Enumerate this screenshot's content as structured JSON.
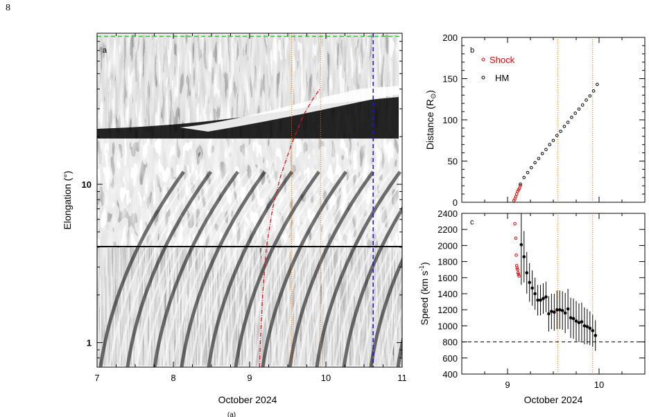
{
  "page": {
    "number": "8",
    "caption_stub": "(a)"
  },
  "colors": {
    "shock": "#e00000",
    "hm": "#000000",
    "reference_line": "#000000",
    "green_dash": "#22cc22",
    "blue_dash": "#1a1acc",
    "orange_dot": "#e07a2e",
    "red_fit": "#e01010"
  },
  "chart_data": [
    {
      "id": "a",
      "type": "heatmap",
      "panel_label": "a",
      "xlabel": "October 2024",
      "ylabel": "Elongation (°)",
      "x_ticks": [
        "7",
        "8",
        "9",
        "10",
        "11"
      ],
      "y_ticks": [
        "1",
        "10"
      ],
      "xlim": [
        7,
        11
      ],
      "y_scale": "log",
      "ylim": [
        0.7,
        90
      ],
      "vertical_dotted_lines_x": [
        9.55,
        9.93
      ],
      "vertical_dashed_line_x": 10.62,
      "horizontal_dashed_line_y": 86,
      "track_fit": [
        [
          9.13,
          0.7
        ],
        [
          9.14,
          1.0
        ],
        [
          9.17,
          2.0
        ],
        [
          9.22,
          4.0
        ],
        [
          9.3,
          7.0
        ],
        [
          9.4,
          11.0
        ],
        [
          9.55,
          18.0
        ],
        [
          9.7,
          27.0
        ],
        [
          9.82,
          34.0
        ],
        [
          9.92,
          40.0
        ]
      ]
    },
    {
      "id": "b",
      "type": "scatter",
      "panel_label": "b",
      "ylabel_text": "Distance (R",
      "ylabel_sub": "⊙",
      "ylabel_close": ")",
      "ylim": [
        0,
        200
      ],
      "xlim": [
        8.5,
        10.5
      ],
      "y_ticks": [
        "0",
        "50",
        "100",
        "150",
        "200"
      ],
      "vertical_dotted_lines_x": [
        9.55,
        9.93
      ],
      "legend": [
        {
          "name": "Shock",
          "color": "#e00000"
        },
        {
          "name": "HM",
          "color": "#000000"
        }
      ],
      "legend_position": "top-left",
      "series": [
        {
          "name": "Shock",
          "x": [
            9.07,
            9.08,
            9.09,
            9.1,
            9.11,
            9.12,
            9.13,
            9.14
          ],
          "y": [
            2,
            4,
            7,
            10,
            13,
            15,
            17,
            20
          ]
        },
        {
          "name": "HM",
          "x": [
            9.14,
            9.18,
            9.22,
            9.26,
            9.3,
            9.34,
            9.38,
            9.42,
            9.46,
            9.5,
            9.54,
            9.58,
            9.62,
            9.66,
            9.7,
            9.74,
            9.78,
            9.82,
            9.86,
            9.9,
            9.94,
            9.98
          ],
          "y": [
            22,
            30,
            36,
            42,
            48,
            53,
            59,
            64,
            70,
            75,
            81,
            86,
            92,
            97,
            103,
            108,
            113,
            118,
            124,
            129,
            135,
            143
          ]
        }
      ]
    },
    {
      "id": "c",
      "type": "scatter",
      "panel_label": "c",
      "xlabel": "October 2024",
      "ylabel_text": "Speed (km s",
      "ylabel_sup": "-1",
      "ylabel_close": ")",
      "x_ticks": [
        "9",
        "10"
      ],
      "y_ticks": [
        "400",
        "600",
        "800",
        "1000",
        "1200",
        "1400",
        "1600",
        "1800",
        "2000",
        "2200",
        "2400"
      ],
      "xlim": [
        8.5,
        10.5
      ],
      "ylim": [
        400,
        2400
      ],
      "reference_line_y": 800,
      "vertical_dotted_lines_x": [
        9.55,
        9.93
      ],
      "series": [
        {
          "name": "Shock",
          "x": [
            9.08,
            9.09,
            9.095,
            9.1,
            9.105,
            9.11,
            9.115,
            9.12,
            9.125
          ],
          "y": [
            2270,
            2090,
            1880,
            1750,
            1720,
            1700,
            1660,
            1640,
            1620
          ]
        },
        {
          "name": "HM",
          "x": [
            9.15,
            9.18,
            9.21,
            9.24,
            9.27,
            9.3,
            9.33,
            9.36,
            9.39,
            9.42,
            9.45,
            9.48,
            9.51,
            9.54,
            9.57,
            9.6,
            9.63,
            9.66,
            9.69,
            9.72,
            9.75,
            9.78,
            9.81,
            9.84,
            9.87,
            9.9,
            9.93,
            9.96
          ],
          "y": [
            2010,
            1860,
            1660,
            1540,
            1470,
            1400,
            1320,
            1320,
            1340,
            1360,
            1150,
            1180,
            1170,
            1200,
            1200,
            1190,
            1160,
            1210,
            1100,
            1090,
            1060,
            1040,
            1050,
            1000,
            990,
            970,
            940,
            880
          ],
          "err": [
            500,
            320,
            260,
            240,
            220,
            200,
            190,
            190,
            190,
            190,
            220,
            220,
            230,
            240,
            240,
            240,
            250,
            250,
            250,
            250,
            250,
            240,
            240,
            230,
            220,
            210,
            200,
            190
          ]
        }
      ]
    }
  ]
}
